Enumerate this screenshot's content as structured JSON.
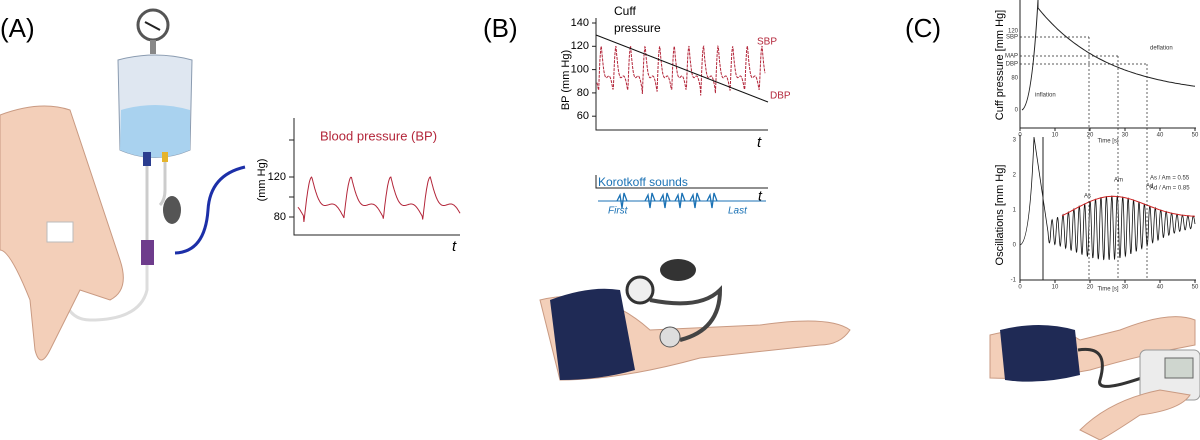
{
  "panel_a": {
    "label": "(A)",
    "chart": {
      "title": "Blood pressure (BP)",
      "y_axis": "(mm Hg)",
      "yticks": [
        "120",
        "80"
      ],
      "x_axis": "t"
    }
  },
  "panel_b": {
    "label": "(B)",
    "chart": {
      "y_axis": "BP (mm Hg)",
      "yticks": [
        "140",
        "120",
        "100",
        "80",
        "60"
      ],
      "cuff_label": [
        "Cuff",
        "pressure"
      ],
      "sbp": "SBP",
      "dbp": "DBP",
      "x_axis": "t"
    },
    "korotkoff": {
      "title": "Korotkoff sounds",
      "first": "First",
      "last": "Last",
      "x_axis": "t"
    }
  },
  "panel_c": {
    "label": "(C)",
    "top": {
      "y_axis": "Cuff pressure [mm Hg]",
      "yticks": [
        "120",
        "SBP",
        "MAP",
        "DBP",
        "80",
        "0"
      ],
      "xticks": [
        "0",
        "10",
        "20",
        "30",
        "40",
        "50"
      ],
      "x_axis": "Time [s]",
      "deflation": "deflation",
      "inflation": "inflation"
    },
    "bottom": {
      "y_axis": "Oscillations [mm Hg]",
      "yticks": [
        "3",
        "2",
        "1",
        "0",
        "-1"
      ],
      "xticks": [
        "0",
        "10",
        "20",
        "30",
        "40",
        "50"
      ],
      "x_axis": "Time [s]",
      "ratios": [
        "As / Am = 0.55",
        "Ad / Am = 0.85"
      ],
      "markers": [
        "As",
        "Am",
        "Ad"
      ]
    }
  }
}
